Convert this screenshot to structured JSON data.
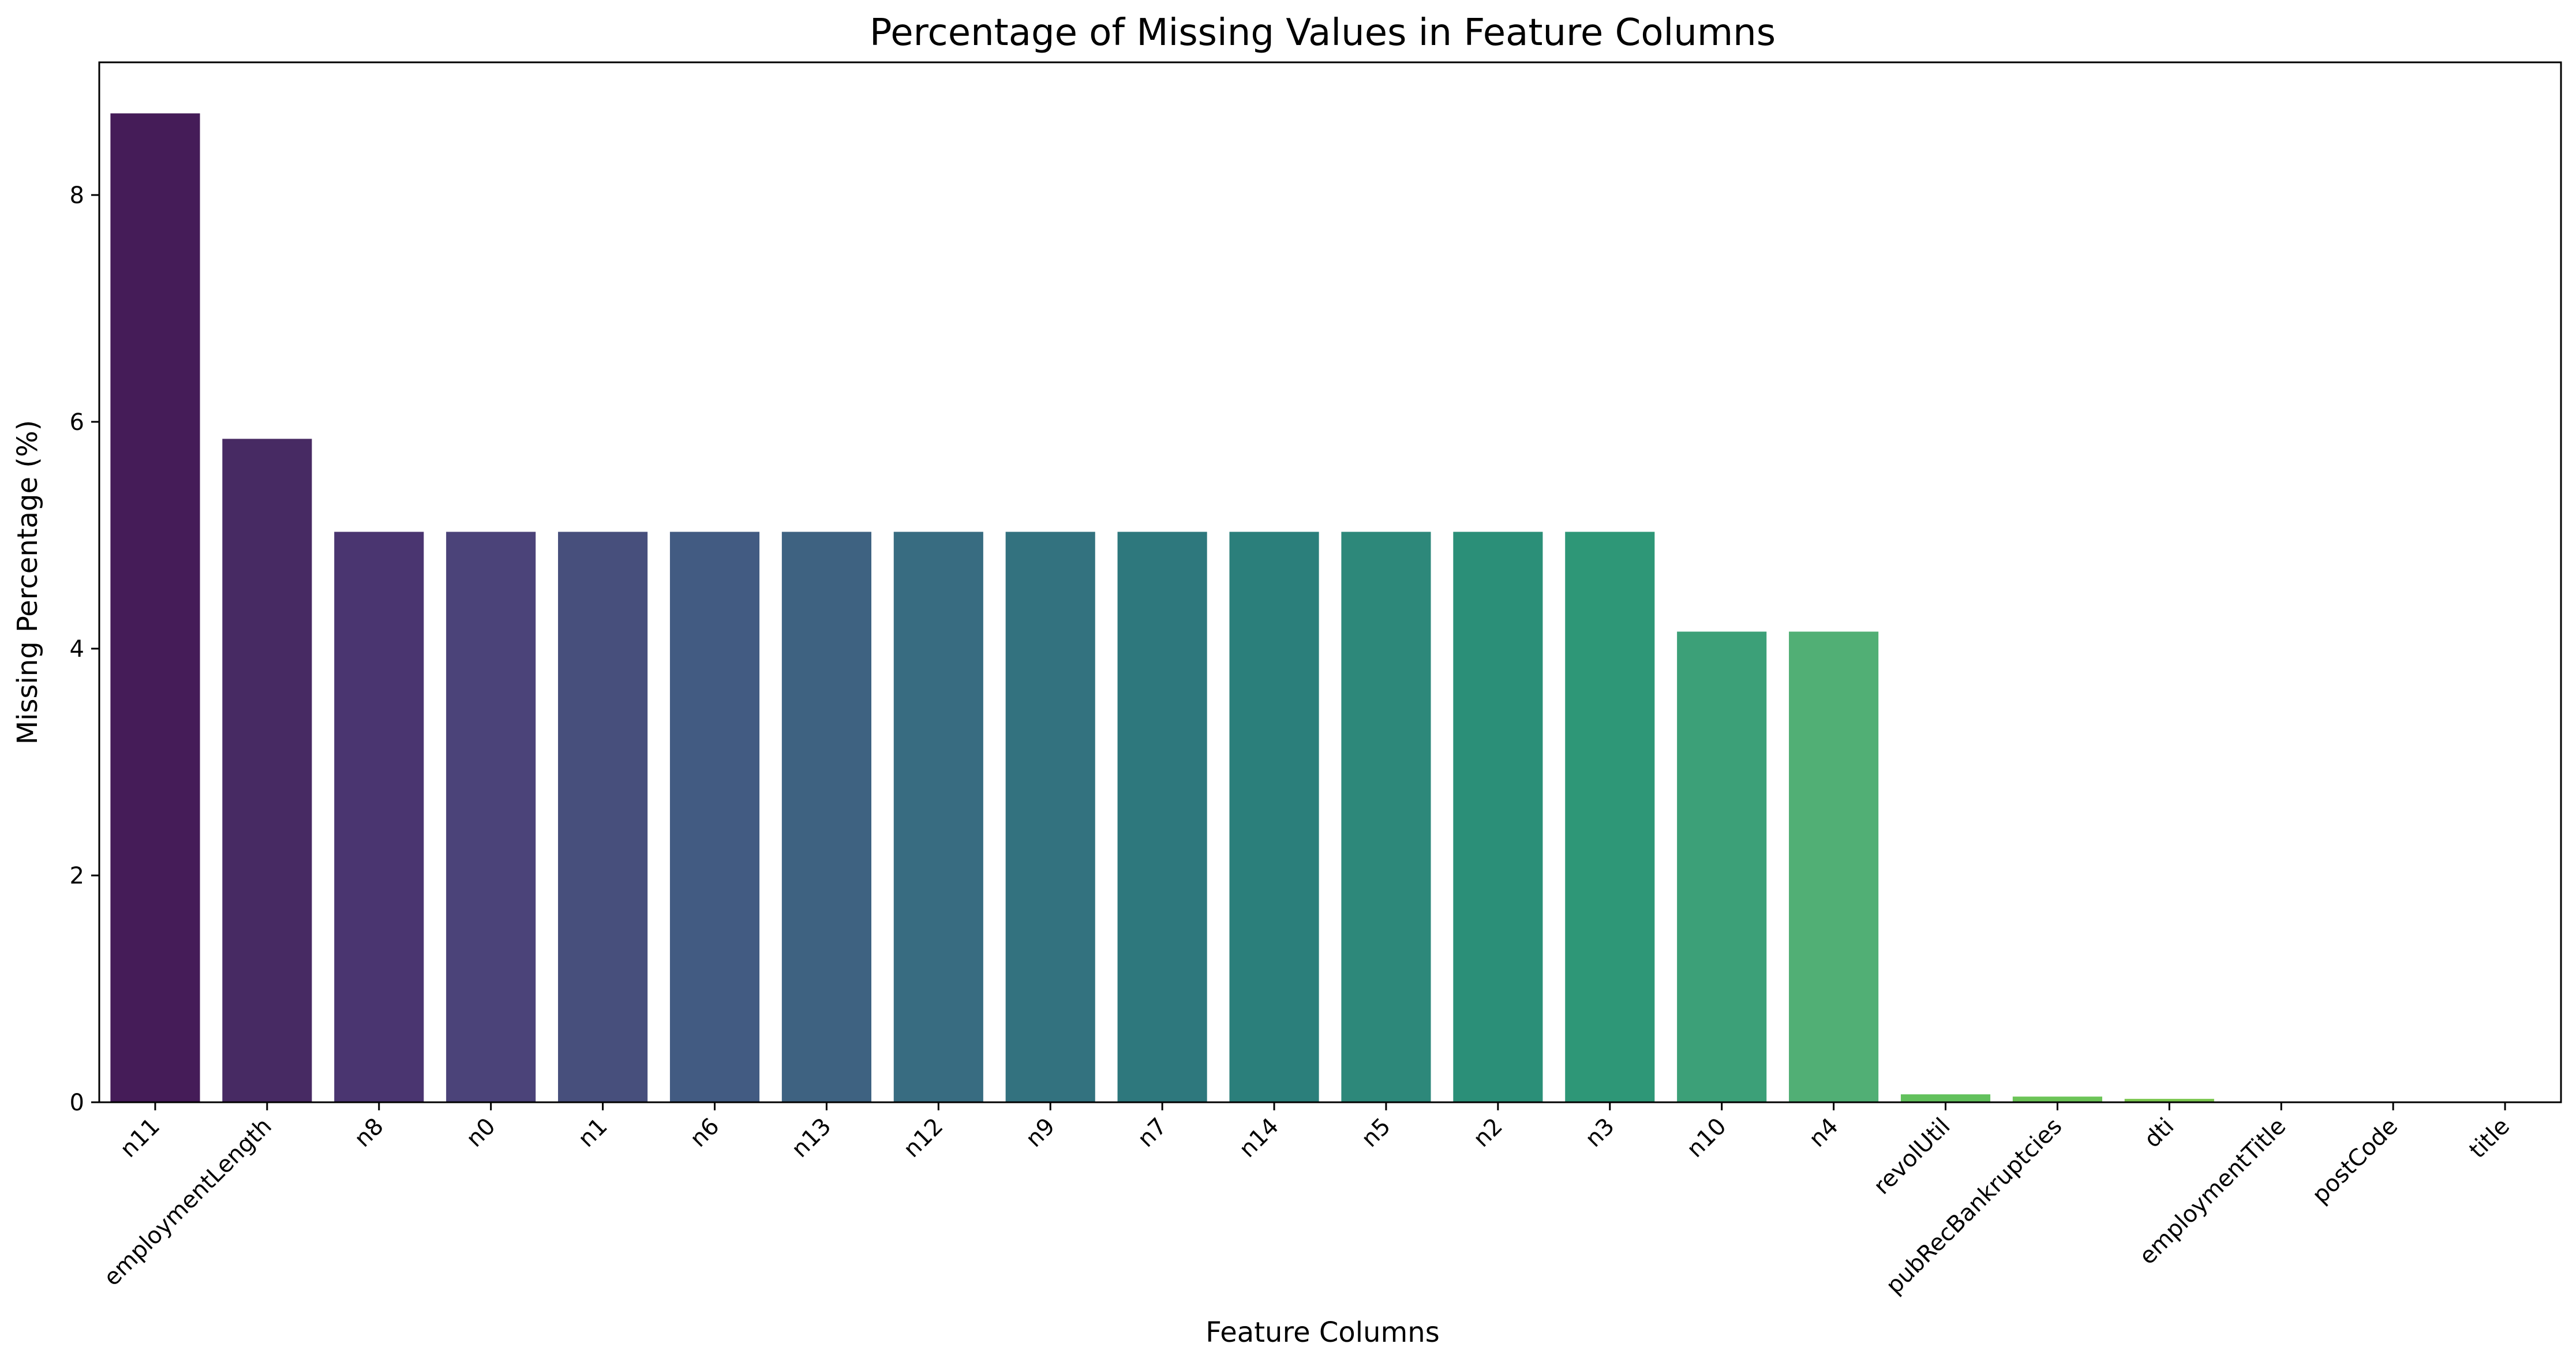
{
  "chart_data": {
    "type": "bar",
    "title": "Percentage of Missing Values in Feature Columns",
    "xlabel": "Feature Columns",
    "ylabel": "Missing Percentage (%)",
    "categories": [
      "n11",
      "employmentLength",
      "n8",
      "n0",
      "n1",
      "n6",
      "n13",
      "n12",
      "n9",
      "n7",
      "n14",
      "n5",
      "n2",
      "n3",
      "n10",
      "n4",
      "revolUtil",
      "pubRecBankruptcies",
      "dti",
      "employmentTitle",
      "postCode",
      "title"
    ],
    "values": [
      8.72,
      5.85,
      5.03,
      5.03,
      5.03,
      5.03,
      5.03,
      5.03,
      5.03,
      5.03,
      5.03,
      5.03,
      5.03,
      5.03,
      4.15,
      4.15,
      0.07,
      0.05,
      0.03,
      0.0,
      0.0,
      0.0
    ],
    "colors": [
      "#451c58",
      "#472a63",
      "#4a3570",
      "#4b4379",
      "#474f7c",
      "#425b82",
      "#3e6281",
      "#386c81",
      "#33727f",
      "#2e787d",
      "#2b7f7b",
      "#2d887a",
      "#2b8f78",
      "#2e9777",
      "#3ca078",
      "#51af75",
      "#62c15d",
      "#6cc457",
      "#7bc74f",
      "#8ac946",
      "#99cb3d",
      "#a8ce35"
    ],
    "yticks": [
      0,
      2,
      4,
      6,
      8
    ],
    "ylim": [
      0,
      9.17
    ],
    "grid": false,
    "legend": "none"
  }
}
